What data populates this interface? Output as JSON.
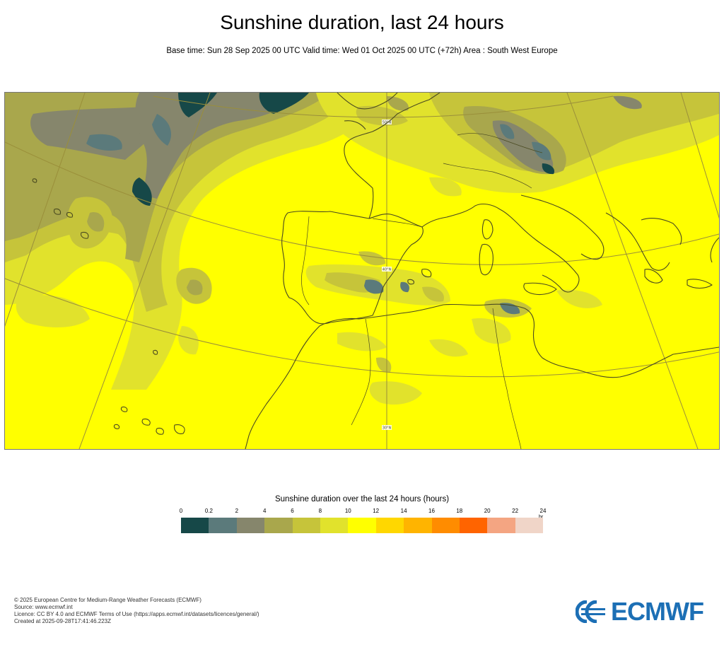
{
  "title": "Sunshine duration, last 24 hours",
  "subtitle": "Base time: Sun 28 Sep 2025 00 UTC Valid time: Wed 01 Oct 2025 00 UTC (+72h) Area : South West Europe",
  "map": {
    "lat_labels": [
      "50°N",
      "40°N",
      "30°N"
    ],
    "colors": {
      "background": "#ffff00",
      "coast": "#4a4a20",
      "graticule": "#9a8f3a"
    }
  },
  "legend": {
    "title": "Sunshine duration over the last 24 hours (hours)",
    "ticks": [
      "0",
      "0.2",
      "2",
      "4",
      "6",
      "8",
      "10",
      "12",
      "14",
      "16",
      "18",
      "20",
      "22",
      "24"
    ],
    "unit": "hr",
    "colors": [
      "#164848",
      "#5b7a7b",
      "#86866c",
      "#a9a74c",
      "#c6c43a",
      "#e1e22c",
      "#ffff00",
      "#ffd700",
      "#ffb400",
      "#ff8c00",
      "#ff6400",
      "#f4a582",
      "#f0d5c8"
    ]
  },
  "footer": {
    "lines": [
      "© 2025 European Centre for Medium-Range Weather Forecasts (ECMWF)",
      "Source: www.ecmwf.int",
      "Licence: CC BY 4.0 and ECMWF Terms of Use (https://apps.ecmwf.int/datasets/licences/general/)",
      "Created at 2025-09-28T17:41:46.223Z"
    ]
  },
  "logo": {
    "text": "ECMWF",
    "color": "#1c6fb5"
  }
}
